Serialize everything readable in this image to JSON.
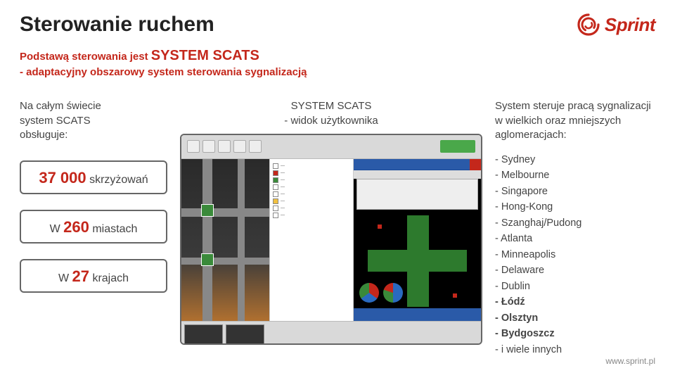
{
  "header": {
    "title": "Sterowanie ruchem",
    "subtitle_line1_prefix": "Podstawą sterowania jest ",
    "subtitle_system": "SYSTEM SCATS",
    "subtitle_line2": "- adaptacyjny obszarowy system sterowania sygnalizacją",
    "logo_text": "Sprint",
    "logo_color": "#c4271b"
  },
  "left": {
    "intro_line1": "Na całym świecie",
    "intro_line2": "system SCATS",
    "intro_line3": "obsługuje:",
    "stat1_value": "37 000",
    "stat1_label": " skrzyżowań",
    "stat2_prefix": "W ",
    "stat2_value": "260",
    "stat2_label": " miastach",
    "stat3_prefix": "W ",
    "stat3_value": "27",
    "stat3_label": " krajach"
  },
  "mid": {
    "title_line1": "SYSTEM SCATS",
    "title_line2": "- widok użytkownika"
  },
  "right": {
    "intro": "System steruje pracą sygnalizacji w wielkich oraz mniejszych aglomeracjach:",
    "cities": [
      {
        "text": "- Sydney",
        "bold": false
      },
      {
        "text": "- Melbourne",
        "bold": false
      },
      {
        "text": "- Singapore",
        "bold": false
      },
      {
        "text": "- Hong-Kong",
        "bold": false
      },
      {
        "text": "- Szanghaj/Pudong",
        "bold": false
      },
      {
        "text": "- Atlanta",
        "bold": false
      },
      {
        "text": "- Minneapolis",
        "bold": false
      },
      {
        "text": "- Delaware",
        "bold": false
      },
      {
        "text": "- Dublin",
        "bold": false
      },
      {
        "text": "- Łódź",
        "bold": true
      },
      {
        "text": "- Olsztyn",
        "bold": true
      },
      {
        "text": "- Bydgoszcz",
        "bold": true
      },
      {
        "text": "- i wiele innych",
        "bold": false
      }
    ]
  },
  "footer": {
    "url": "www.sprint.pl"
  },
  "colors": {
    "accent": "#c4271b",
    "text": "#444444",
    "title": "#222222",
    "border": "#666666",
    "background": "#ffffff"
  }
}
